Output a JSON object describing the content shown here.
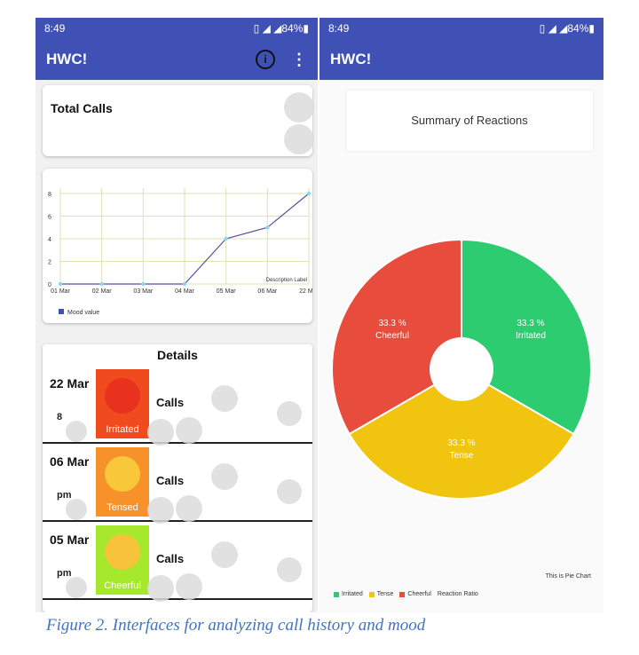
{
  "left": {
    "status": {
      "time": "8:49",
      "battery": "84%"
    },
    "appbar": {
      "title": "HWC!",
      "info_icon": "info-icon",
      "more_icon": "more-vertical-icon"
    },
    "total_calls": {
      "title": "Total Calls"
    },
    "chart_data": {
      "type": "line",
      "x": [
        "01 Mar",
        "02 Mar",
        "03 Mar",
        "04 Mar",
        "05 Mar",
        "06 Mar",
        "22 Mar"
      ],
      "series": [
        {
          "name": "Mood value",
          "values": [
            0,
            0,
            0,
            0,
            4,
            5,
            8
          ]
        }
      ],
      "yticks": [
        "0",
        "2",
        "4",
        "6",
        "8"
      ],
      "ylim": [
        0,
        8
      ],
      "description": "Description Label",
      "grid": true,
      "legend": "bottom-left",
      "colors": {
        "line": "#5b4f9b",
        "point": "#8ad8f0"
      }
    },
    "details": {
      "title": "Details",
      "rows": [
        {
          "date": "22 Mar",
          "sub": "8",
          "emotion": "Irritated",
          "calls": "Calls",
          "bg": "#f04a1f",
          "face": "#e8321e"
        },
        {
          "date": "06 Mar",
          "sub": "pm",
          "emotion": "Tensed",
          "calls": "Calls",
          "bg": "#f7922a",
          "face": "#f8c83a"
        },
        {
          "date": "05 Mar",
          "sub": "pm",
          "emotion": "Cheerful",
          "calls": "Calls",
          "bg": "#a6e92c",
          "face": "#f6c33a"
        }
      ]
    }
  },
  "right": {
    "status": {
      "time": "8:49",
      "battery": "84%"
    },
    "appbar": {
      "title": "HWC!"
    },
    "summary_title": "Summary of Reactions",
    "pie_caption": "This is Pie Chart",
    "chart_data": {
      "type": "pie",
      "categories": [
        "Irritated",
        "Tense",
        "Cheerful"
      ],
      "values": [
        33.3,
        33.3,
        33.3
      ],
      "value_labels": [
        "33.3 %",
        "33.3 %",
        "33.3 %"
      ],
      "colors": [
        "#2ecc71",
        "#f1c40f",
        "#e74c3c"
      ],
      "legend_suffix": "Reaction Ratio",
      "hole": true
    }
  },
  "caption": "Figure 2. Interfaces for analyzing call history and mood"
}
